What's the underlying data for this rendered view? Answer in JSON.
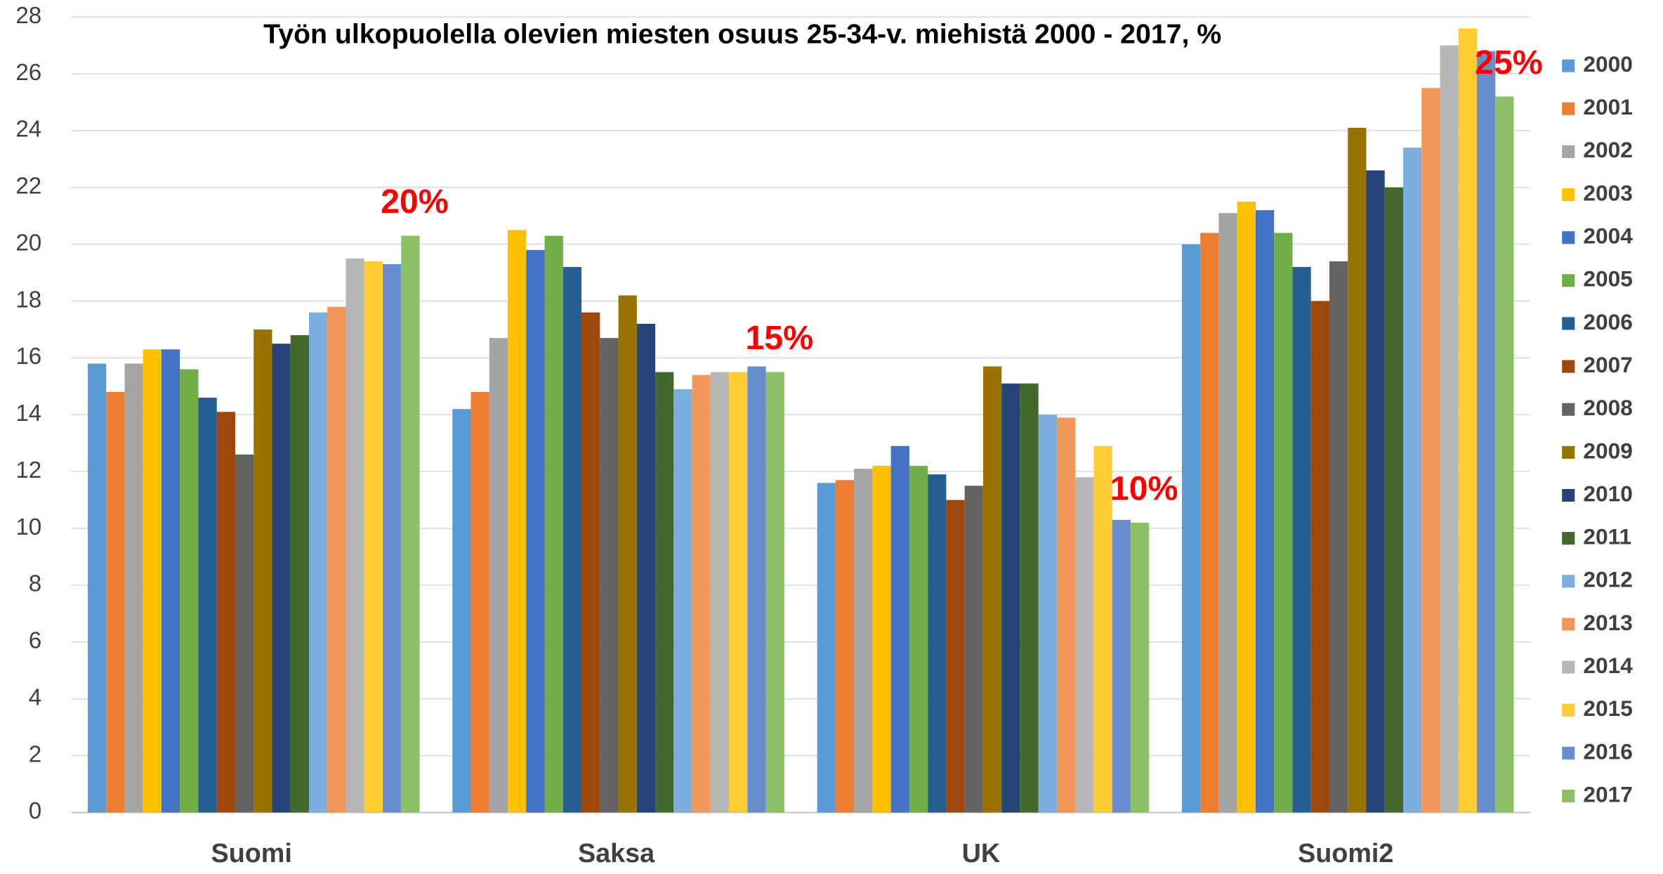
{
  "chart_data": {
    "type": "bar",
    "title": "Työn ulkopuolella olevien miesten osuus 25-34-v. miehistä 2000 - 2017, %",
    "categories": [
      "Suomi",
      "Saksa",
      "UK",
      "Suomi2"
    ],
    "series": [
      {
        "name": "2000",
        "color": "#5b9bd5",
        "values": [
          15.8,
          14.2,
          11.6,
          20.0
        ]
      },
      {
        "name": "2001",
        "color": "#ed7d31",
        "values": [
          14.8,
          14.8,
          11.7,
          20.4
        ]
      },
      {
        "name": "2002",
        "color": "#a5a5a5",
        "values": [
          15.8,
          16.7,
          12.1,
          21.1
        ]
      },
      {
        "name": "2003",
        "color": "#ffc000",
        "values": [
          16.3,
          20.5,
          12.2,
          21.5
        ]
      },
      {
        "name": "2004",
        "color": "#4472c4",
        "values": [
          16.3,
          19.8,
          12.9,
          21.2
        ]
      },
      {
        "name": "2005",
        "color": "#70ad47",
        "values": [
          15.6,
          20.3,
          12.2,
          20.4
        ]
      },
      {
        "name": "2006",
        "color": "#255e91",
        "values": [
          14.6,
          19.2,
          11.9,
          19.2
        ]
      },
      {
        "name": "2007",
        "color": "#9e480e",
        "values": [
          14.1,
          17.6,
          11.0,
          18.0
        ]
      },
      {
        "name": "2008",
        "color": "#636363",
        "values": [
          12.6,
          16.7,
          11.5,
          19.4
        ]
      },
      {
        "name": "2009",
        "color": "#997300",
        "values": [
          17.0,
          18.2,
          15.7,
          24.1
        ]
      },
      {
        "name": "2010",
        "color": "#264478",
        "values": [
          16.5,
          17.2,
          15.1,
          22.6
        ]
      },
      {
        "name": "2011",
        "color": "#43682b",
        "values": [
          16.8,
          15.5,
          15.1,
          22.0
        ]
      },
      {
        "name": "2012",
        "color": "#7cafdd",
        "values": [
          17.6,
          14.9,
          14.0,
          23.4
        ]
      },
      {
        "name": "2013",
        "color": "#f1975a",
        "values": [
          17.8,
          15.4,
          13.9,
          25.5
        ]
      },
      {
        "name": "2014",
        "color": "#b7b7b7",
        "values": [
          19.5,
          15.5,
          11.8,
          27.0
        ]
      },
      {
        "name": "2015",
        "color": "#ffcd33",
        "values": [
          19.4,
          15.5,
          12.9,
          27.6
        ]
      },
      {
        "name": "2016",
        "color": "#698ed0",
        "values": [
          19.3,
          15.7,
          10.3,
          26.8
        ]
      },
      {
        "name": "2017",
        "color": "#8cc168",
        "values": [
          20.3,
          15.5,
          10.2,
          25.2
        ]
      }
    ],
    "annotations": [
      "20%",
      "15%",
      "10%",
      "25%"
    ],
    "ylim": [
      0,
      28
    ],
    "yticks": [
      0,
      2,
      4,
      6,
      8,
      10,
      12,
      14,
      16,
      18,
      20,
      22,
      24,
      26,
      28
    ],
    "grid": true,
    "legend": "right"
  }
}
